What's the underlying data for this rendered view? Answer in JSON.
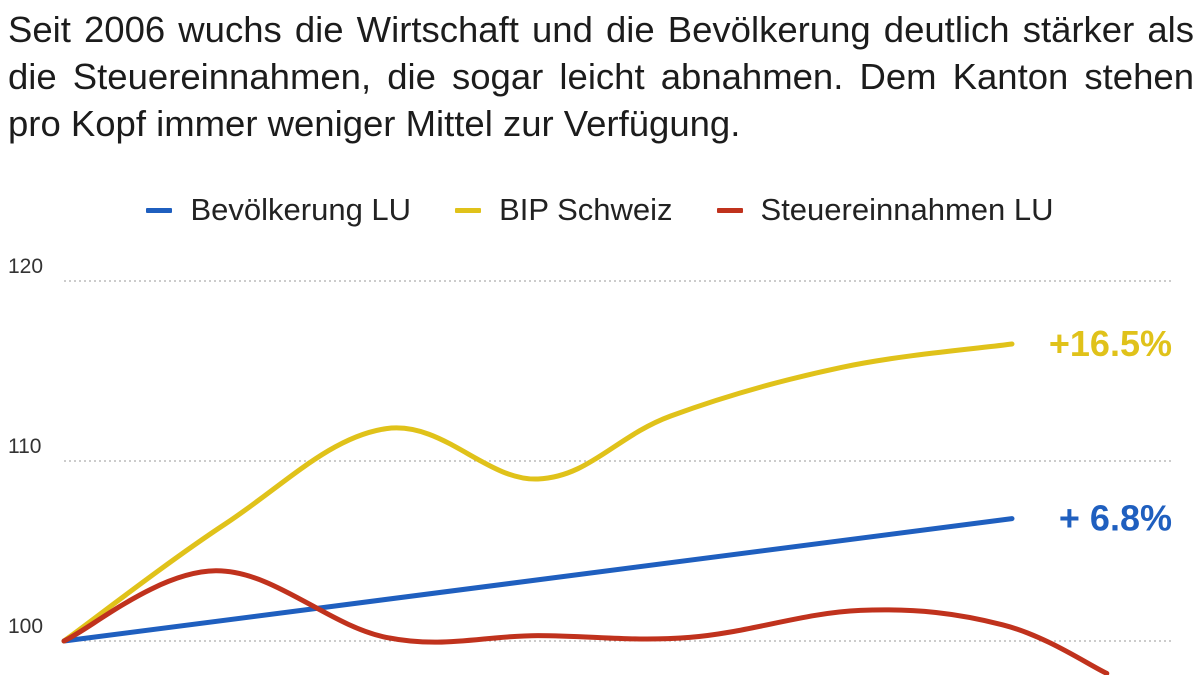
{
  "headline": "Seit 2006 wuchs die Wirtschaft und die Bevölkerung deutlich stärker als die Steuereinnahmen, die sogar leicht abnahmen. Dem Kanton stehen pro Kopf immer weniger Mittel zur Verfügung.",
  "legend": [
    {
      "label": "Bevölkerung LU",
      "color": "#1f5fbf"
    },
    {
      "label": "BIP Schweiz",
      "color": "#e0c21a"
    },
    {
      "label": "Steuereinnahmen LU",
      "color": "#c0321d"
    }
  ],
  "chart_data": {
    "type": "line",
    "title": "",
    "xlabel": "",
    "ylabel": "",
    "ylim": [
      100,
      120
    ],
    "yticks": [
      100,
      110,
      120
    ],
    "grid": true,
    "legend_position": "top",
    "series": [
      {
        "name": "Bevölkerung LU",
        "color": "#1f5fbf",
        "x": [
          0,
          1
        ],
        "y": [
          100,
          106.8
        ],
        "end_label": "+ 6.8%"
      },
      {
        "name": "BIP Schweiz",
        "color": "#e0c21a",
        "x": [
          0,
          0.17,
          0.34,
          0.5,
          0.64,
          0.82,
          1
        ],
        "y": [
          100,
          106.5,
          111.8,
          109.0,
          112.5,
          115.2,
          116.5
        ],
        "end_label": "+16.5%"
      },
      {
        "name": "Steuereinnahmen LU",
        "color": "#c0321d",
        "x": [
          0,
          0.16,
          0.34,
          0.5,
          0.66,
          0.84,
          0.99,
          1.1
        ],
        "y": [
          100,
          103.9,
          100.2,
          100.3,
          100.2,
          101.7,
          100.9,
          98.2
        ]
      }
    ]
  }
}
